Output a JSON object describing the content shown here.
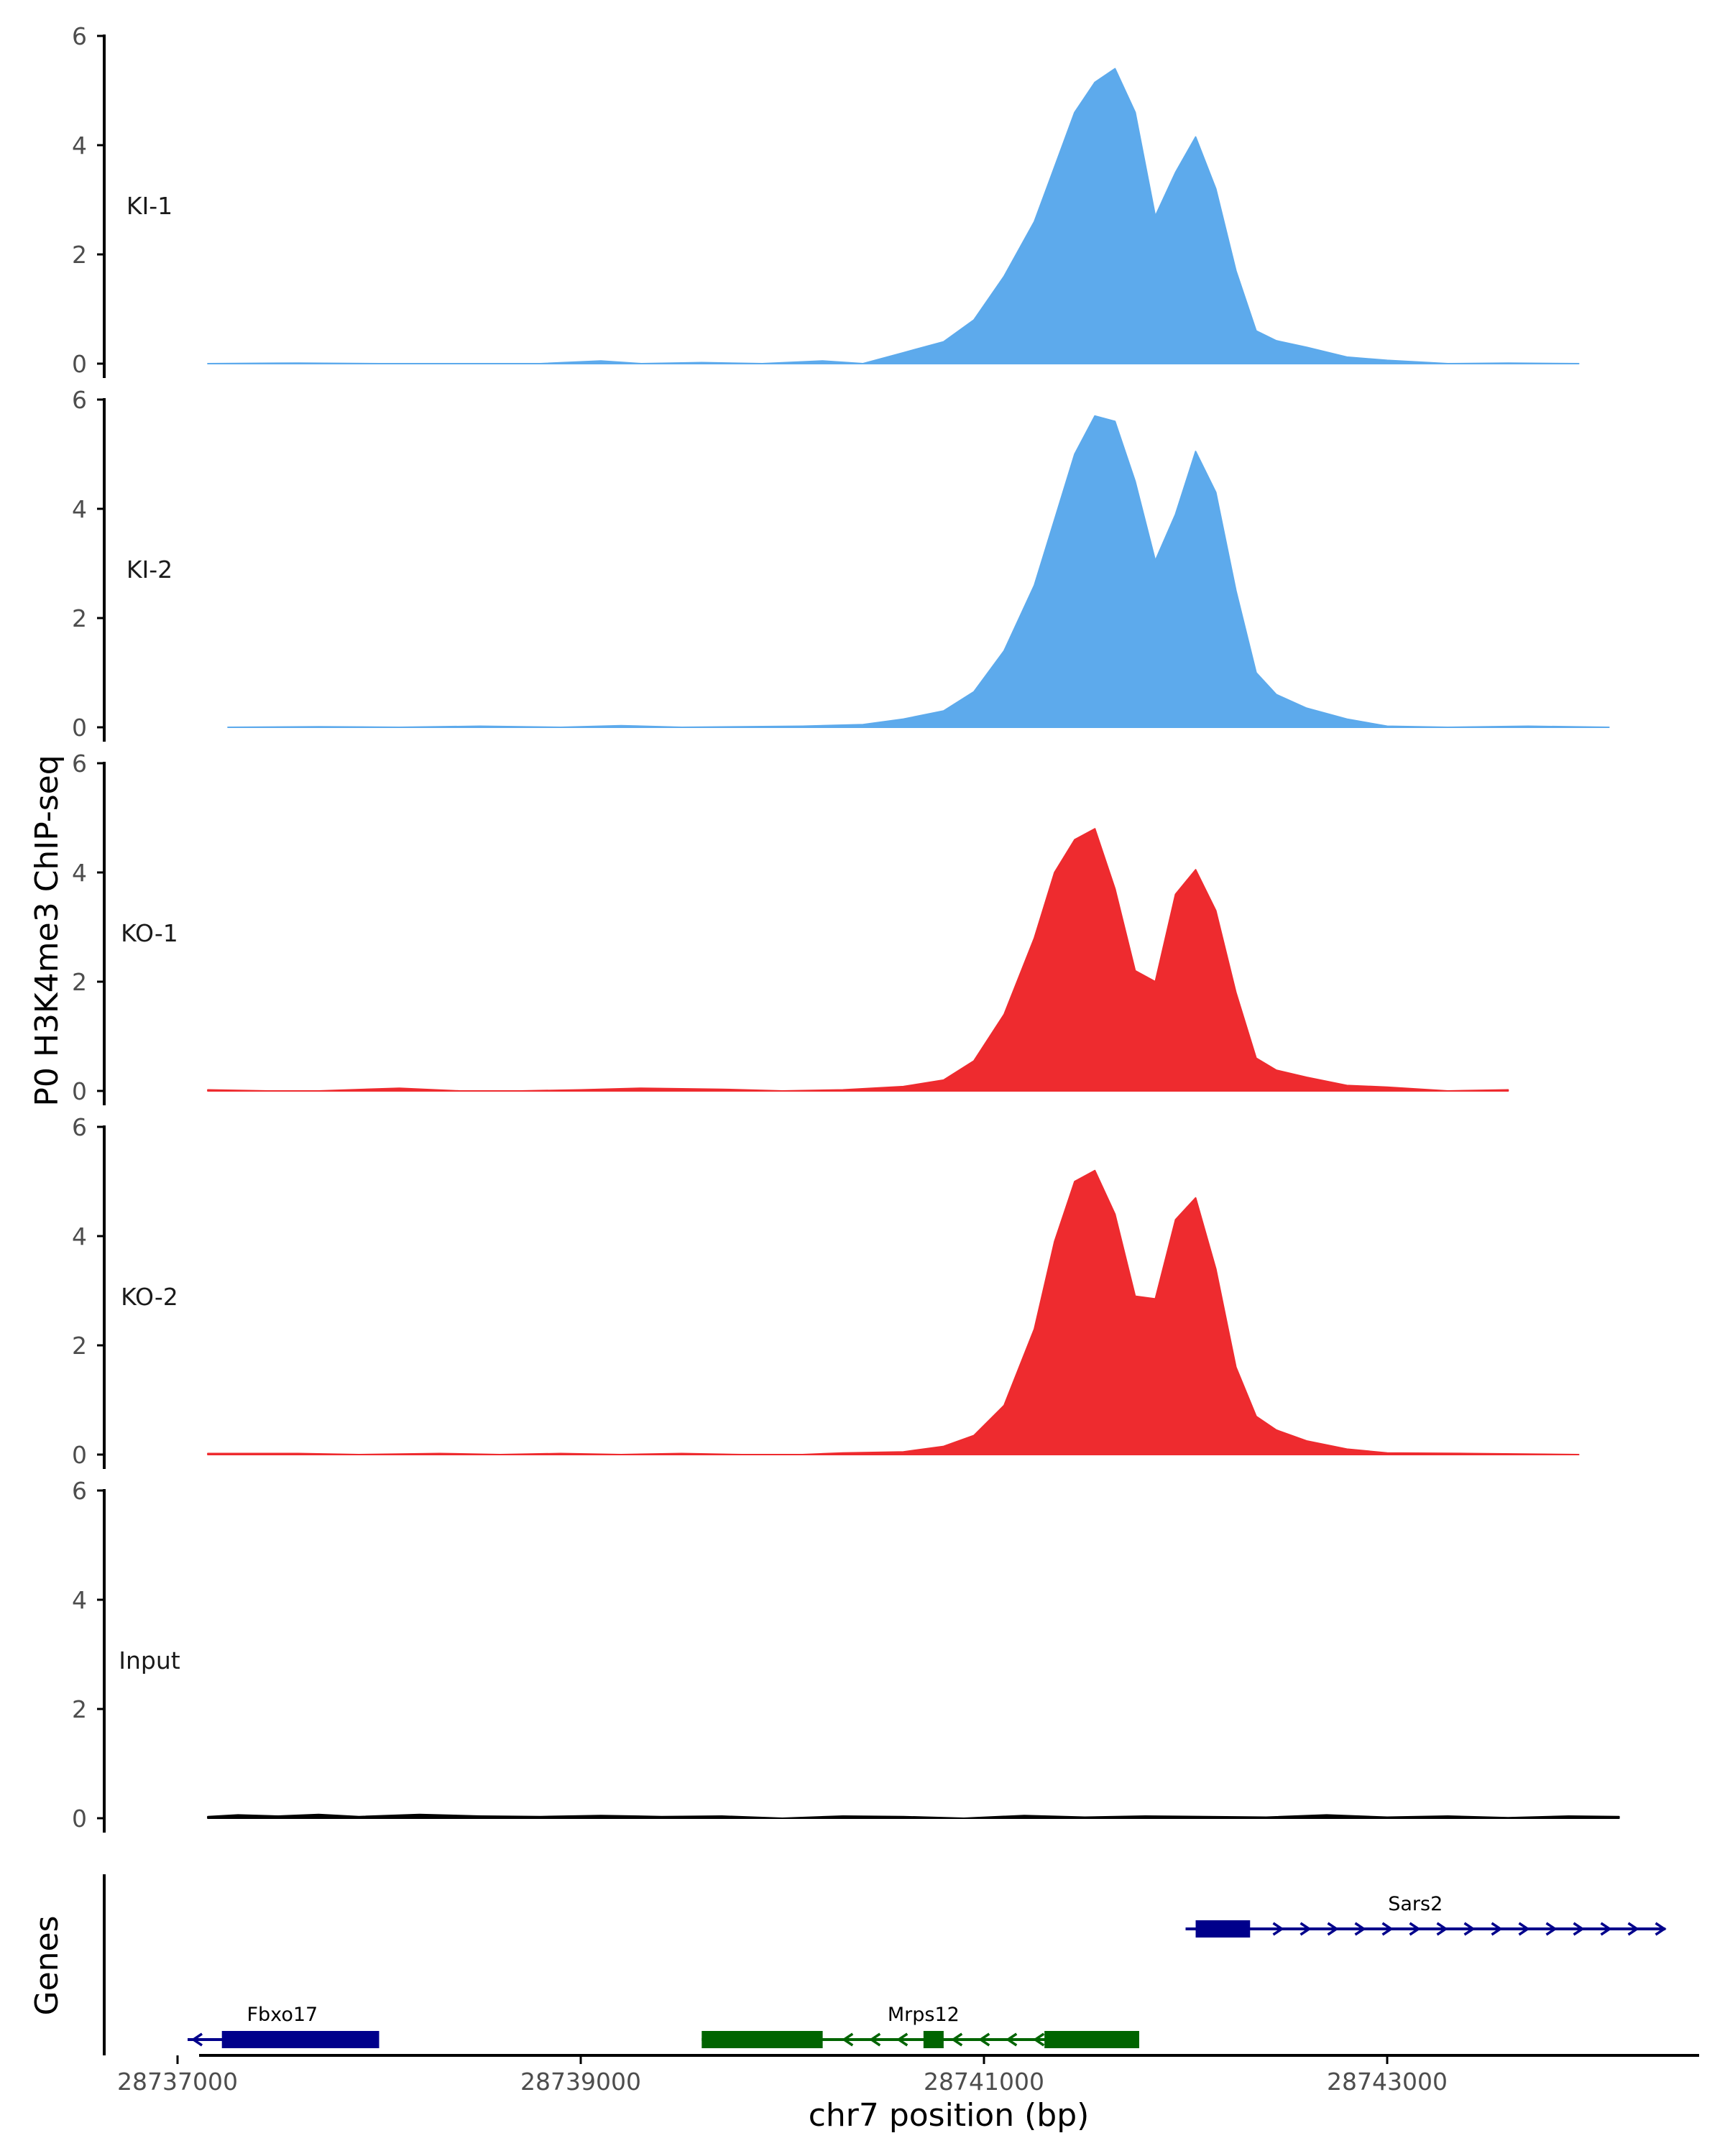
{
  "chart_data": {
    "type": "area",
    "ylabel": "P0 H3K4me3 ChIP-seq",
    "ylim": [
      0,
      6
    ],
    "yticks": [
      0,
      2,
      4,
      6
    ],
    "xlabel": "chr7 position (bp)",
    "xlim": [
      28736700,
      28744650
    ],
    "xticks": [
      28737000,
      28739000,
      28741000,
      28743000
    ],
    "genes_label": "Genes",
    "tracks": [
      {
        "name": "KI-1",
        "color": "#5DAAEC",
        "x": [
          28737150,
          28737600,
          28738000,
          28738400,
          28738800,
          28739100,
          28739300,
          28739600,
          28739900,
          28740200,
          28740400,
          28740600,
          28740800,
          28740950,
          28741100,
          28741250,
          28741350,
          28741450,
          28741550,
          28741650,
          28741750,
          28741850,
          28741950,
          28742050,
          28742150,
          28742250,
          28742350,
          28742450,
          28742600,
          28742800,
          28743000,
          28743300,
          28743600,
          28743950
        ],
        "values": [
          0.0,
          0.01,
          0.0,
          0.0,
          0.0,
          0.05,
          0.0,
          0.02,
          0.0,
          0.05,
          0.0,
          0.2,
          0.4,
          0.8,
          1.6,
          2.6,
          3.6,
          4.6,
          5.15,
          5.4,
          4.6,
          2.7,
          3.5,
          4.15,
          3.2,
          1.7,
          0.6,
          0.42,
          0.3,
          0.12,
          0.06,
          0.0,
          0.01,
          0.0
        ]
      },
      {
        "name": "KI-2",
        "color": "#5DAAEC",
        "x": [
          28737250,
          28737700,
          28738100,
          28738500,
          28738900,
          28739200,
          28739500,
          28739800,
          28740100,
          28740400,
          28740600,
          28740800,
          28740950,
          28741100,
          28741250,
          28741350,
          28741450,
          28741550,
          28741650,
          28741750,
          28741850,
          28741950,
          28742050,
          28742150,
          28742250,
          28742350,
          28742450,
          28742600,
          28742800,
          28743000,
          28743300,
          28743700,
          28744100
        ],
        "values": [
          0.0,
          0.01,
          0.0,
          0.02,
          0.0,
          0.03,
          0.0,
          0.01,
          0.02,
          0.05,
          0.15,
          0.3,
          0.65,
          1.4,
          2.6,
          3.8,
          5.0,
          5.7,
          5.6,
          4.5,
          3.05,
          3.9,
          5.05,
          4.3,
          2.5,
          1.0,
          0.6,
          0.35,
          0.15,
          0.02,
          0.0,
          0.02,
          0.0
        ]
      },
      {
        "name": "KO-1",
        "color": "#EE2B2F",
        "x": [
          28737150,
          28737450,
          28737700,
          28738100,
          28738400,
          28738700,
          28739000,
          28739300,
          28739700,
          28740000,
          28740300,
          28740600,
          28740800,
          28740950,
          28741100,
          28741250,
          28741350,
          28741450,
          28741550,
          28741650,
          28741750,
          28741850,
          28741950,
          28742050,
          28742150,
          28742250,
          28742350,
          28742450,
          28742600,
          28742800,
          28743000,
          28743300,
          28743600
        ],
        "values": [
          0.02,
          0.0,
          0.0,
          0.05,
          0.0,
          0.0,
          0.02,
          0.05,
          0.03,
          0.0,
          0.02,
          0.08,
          0.2,
          0.55,
          1.4,
          2.8,
          4.0,
          4.6,
          4.8,
          3.7,
          2.2,
          2.0,
          3.6,
          4.05,
          3.3,
          1.8,
          0.6,
          0.38,
          0.25,
          0.1,
          0.07,
          0.0,
          0.02
        ]
      },
      {
        "name": "KO-2",
        "color": "#EE2B2F",
        "x": [
          28737150,
          28737600,
          28737900,
          28738300,
          28738600,
          28738900,
          28739200,
          28739500,
          28739800,
          28740100,
          28740300,
          28740600,
          28740800,
          28740950,
          28741100,
          28741250,
          28741350,
          28741450,
          28741550,
          28741650,
          28741750,
          28741850,
          28741950,
          28742050,
          28742150,
          28742250,
          28742350,
          28742450,
          28742600,
          28742800,
          28743000,
          28743400,
          28743950
        ],
        "values": [
          0.02,
          0.02,
          0.0,
          0.02,
          0.0,
          0.02,
          0.0,
          0.02,
          0.0,
          0.0,
          0.03,
          0.05,
          0.15,
          0.35,
          0.9,
          2.3,
          3.9,
          5.0,
          5.2,
          4.4,
          2.9,
          2.85,
          4.3,
          4.7,
          3.4,
          1.6,
          0.7,
          0.45,
          0.25,
          0.1,
          0.03,
          0.02,
          0.0
        ]
      },
      {
        "name": "Input",
        "color": "#000000",
        "x": [
          28737150,
          28737300,
          28737500,
          28737700,
          28737900,
          28738200,
          28738500,
          28738800,
          28739100,
          28739400,
          28739700,
          28740000,
          28740300,
          28740600,
          28740900,
          28741200,
          28741500,
          28741800,
          28742100,
          28742400,
          28742700,
          28743000,
          28743300,
          28743600,
          28743900,
          28744150
        ],
        "values": [
          0.03,
          0.06,
          0.04,
          0.07,
          0.03,
          0.07,
          0.04,
          0.03,
          0.05,
          0.03,
          0.04,
          0.0,
          0.04,
          0.03,
          0.0,
          0.05,
          0.02,
          0.04,
          0.03,
          0.02,
          0.06,
          0.02,
          0.04,
          0.01,
          0.04,
          0.03
        ]
      }
    ],
    "genes": [
      {
        "name": "Fbxo17",
        "strand": "-",
        "color": "#00008B",
        "start": 28737050,
        "end": 28738000,
        "exons": [
          [
            28737220,
            28738000
          ]
        ],
        "row": 2,
        "label_x": 28737520
      },
      {
        "name": "Mrps12",
        "strand": "-",
        "color": "#006400",
        "start": 28739600,
        "end": 28741770,
        "exons": [
          [
            28739600,
            28740200
          ],
          [
            28740700,
            28740800
          ],
          [
            28741300,
            28741770
          ]
        ],
        "row": 2,
        "label_x": 28740700
      },
      {
        "name": "Sars2",
        "strand": "+",
        "color": "#00008B",
        "start": 28742000,
        "end": 28744380,
        "exons": [
          [
            28742050,
            28742320
          ]
        ],
        "row": 1,
        "label_x": 28743140
      }
    ]
  }
}
